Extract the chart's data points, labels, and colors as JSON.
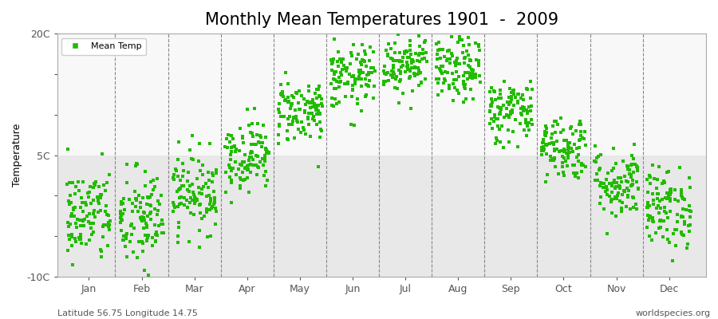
{
  "title": "Monthly Mean Temperatures 1901  -  2009",
  "ylabel": "Temperature",
  "xlabel_bottom_left": "Latitude 56.75 Longitude 14.75",
  "xlabel_bottom_right": "worldspecies.org",
  "legend_label": "Mean Temp",
  "dot_color": "#22bb00",
  "bg_upper": "#f8f8f8",
  "bg_lower": "#e8e8e8",
  "split_temp": 5.0,
  "ylim": [
    -10,
    20
  ],
  "yticks": [
    -10,
    -5,
    0,
    5,
    10,
    15,
    20
  ],
  "ytick_labels": [
    "-10C",
    "",
    "",
    "5C",
    "",
    "",
    "20C"
  ],
  "months": [
    "Jan",
    "Feb",
    "Mar",
    "Apr",
    "May",
    "Jun",
    "Jul",
    "Aug",
    "Sep",
    "Oct",
    "Nov",
    "Dec"
  ],
  "month_means": [
    -2.5,
    -3.0,
    0.5,
    5.0,
    10.5,
    14.5,
    16.5,
    15.5,
    10.5,
    6.0,
    1.5,
    -1.5
  ],
  "month_stds": [
    3.0,
    3.2,
    2.5,
    2.2,
    2.0,
    2.0,
    2.0,
    2.0,
    2.0,
    2.0,
    2.2,
    2.5
  ],
  "n_years": 109,
  "seed": 42,
  "title_fontsize": 15,
  "label_fontsize": 9,
  "tick_fontsize": 9
}
